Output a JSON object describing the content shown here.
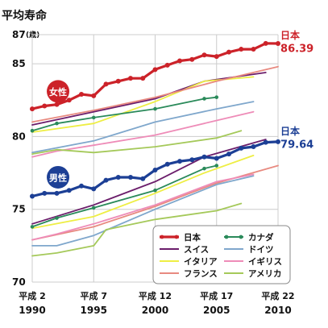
{
  "chart_data": {
    "type": "line",
    "title": "平均寿命",
    "ylabel_unit": "(歳)",
    "ylim": [
      70,
      87
    ],
    "yticks": [
      {
        "label": "87",
        "value": 87
      },
      {
        "label": "85",
        "value": 85
      },
      {
        "label": "80",
        "value": 80
      },
      {
        "label": "75",
        "value": 75
      },
      {
        "label": "70",
        "value": 70
      }
    ],
    "xlim": [
      1990,
      2010
    ],
    "xticks": [
      {
        "era": "平成 2",
        "year": "1990",
        "value": 1990
      },
      {
        "era": "平成 7",
        "year": "1995",
        "value": 1995
      },
      {
        "era": "平成 12",
        "year": "2000",
        "value": 2000
      },
      {
        "era": "平成 17",
        "year": "2005",
        "value": 2005
      },
      {
        "era": "平成 22",
        "year": "2010",
        "value": 2010
      }
    ],
    "sex_badges": [
      {
        "label": "女性",
        "color": "#cc2229",
        "y": 83.1,
        "x": 1992.1
      },
      {
        "label": "男性",
        "color": "#1c3f95",
        "y": 77.2,
        "x": 1992.1
      }
    ],
    "end_labels": [
      {
        "country": "日本",
        "value": "86.39",
        "color": "#cc2229",
        "y_country": 87.0,
        "y_value": 86.1,
        "x": 2010.2
      },
      {
        "country": "日本",
        "value": "79.64",
        "color": "#1c3f95",
        "y_country": 80.4,
        "y_value": 79.5,
        "x": 2010.2
      }
    ],
    "legend": [
      {
        "name": "日本",
        "color": "#cc2229",
        "marker": true
      },
      {
        "name": "スイス",
        "color": "#6b1d6b",
        "marker": false
      },
      {
        "name": "イタリア",
        "color": "#eeee44",
        "marker": false
      },
      {
        "name": "フランス",
        "color": "#e88a80",
        "marker": false
      },
      {
        "name": "カナダ",
        "color": "#2a8a5a",
        "marker": true
      },
      {
        "name": "ドイツ",
        "color": "#7fa7cc",
        "marker": false
      },
      {
        "name": "イギリス",
        "color": "#ee8cb8",
        "marker": false
      },
      {
        "name": "アメリカ",
        "color": "#a5c95a",
        "marker": false
      }
    ],
    "series": [
      {
        "name": "日本",
        "sex": "female",
        "color": "#cc2229",
        "width": 3.2,
        "marker": true,
        "x": [
          1990,
          1991,
          1992,
          1993,
          1994,
          1995,
          1996,
          1997,
          1998,
          1999,
          2000,
          2001,
          2002,
          2003,
          2004,
          2005,
          2006,
          2007,
          2008,
          2009,
          2010
        ],
        "y": [
          81.9,
          82.1,
          82.2,
          82.5,
          82.9,
          82.8,
          83.6,
          83.8,
          84.0,
          84.0,
          84.6,
          84.9,
          85.2,
          85.3,
          85.6,
          85.5,
          85.8,
          86.0,
          86.0,
          86.4,
          86.39
        ]
      },
      {
        "name": "日本",
        "sex": "male",
        "color": "#1c3f95",
        "width": 3.2,
        "marker": true,
        "x": [
          1990,
          1991,
          1992,
          1993,
          1994,
          1995,
          1996,
          1997,
          1998,
          1999,
          2000,
          2001,
          2002,
          2003,
          2004,
          2005,
          2006,
          2007,
          2008,
          2009,
          2010
        ],
        "y": [
          75.9,
          76.1,
          76.1,
          76.3,
          76.6,
          76.4,
          77.0,
          77.2,
          77.2,
          77.1,
          77.7,
          78.1,
          78.3,
          78.4,
          78.6,
          78.5,
          78.8,
          79.2,
          79.3,
          79.6,
          79.64
        ]
      },
      {
        "name": "スイス",
        "sex": "female",
        "color": "#6b1d6b",
        "width": 1.8,
        "marker": false,
        "x": [
          1990,
          1995,
          2000,
          2004,
          2009
        ],
        "y": [
          80.8,
          81.7,
          82.6,
          83.8,
          84.4
        ]
      },
      {
        "name": "スイス",
        "sex": "male",
        "color": "#6b1d6b",
        "width": 1.8,
        "marker": false,
        "x": [
          1990,
          1995,
          2000,
          2004,
          2009
        ],
        "y": [
          74.0,
          75.3,
          76.9,
          78.6,
          79.8
        ]
      },
      {
        "name": "イタリア",
        "sex": "female",
        "color": "#eeee44",
        "width": 1.8,
        "marker": false,
        "x": [
          1990,
          1995,
          2000,
          2004,
          2008
        ],
        "y": [
          80.3,
          80.9,
          82.4,
          83.8,
          84.1
        ]
      },
      {
        "name": "イタリア",
        "sex": "male",
        "color": "#eeee44",
        "width": 1.8,
        "marker": false,
        "x": [
          1990,
          1995,
          2000,
          2004,
          2008
        ],
        "y": [
          73.7,
          74.5,
          76.1,
          77.5,
          78.7
        ]
      },
      {
        "name": "フランス",
        "sex": "female",
        "color": "#e88a80",
        "width": 1.8,
        "marker": false,
        "x": [
          1990,
          1995,
          2000,
          2005,
          2010
        ],
        "y": [
          81.0,
          81.8,
          82.7,
          83.8,
          84.8
        ]
      },
      {
        "name": "フランス",
        "sex": "male",
        "color": "#e88a80",
        "width": 1.8,
        "marker": false,
        "x": [
          1990,
          1995,
          2000,
          2005,
          2010
        ],
        "y": [
          72.9,
          73.8,
          75.2,
          76.8,
          78.0
        ]
      },
      {
        "name": "カナダ",
        "sex": "female",
        "color": "#2a8a5a",
        "width": 1.8,
        "marker": true,
        "x": [
          1990,
          1992,
          1995,
          2000,
          2004,
          2005
        ],
        "y": [
          80.4,
          80.9,
          81.3,
          81.9,
          82.6,
          82.7
        ]
      },
      {
        "name": "カナダ",
        "sex": "male",
        "color": "#2a8a5a",
        "width": 1.8,
        "marker": true,
        "x": [
          1990,
          1992,
          1995,
          2000,
          2004,
          2005
        ],
        "y": [
          73.8,
          74.4,
          75.1,
          76.3,
          77.8,
          78.0
        ]
      },
      {
        "name": "ドイツ",
        "sex": "female",
        "color": "#7fa7cc",
        "width": 1.8,
        "marker": false,
        "x": [
          1990,
          1995,
          2000,
          2005,
          2008
        ],
        "y": [
          78.9,
          79.7,
          81.0,
          81.9,
          82.4
        ]
      },
      {
        "name": "ドイツ",
        "sex": "male",
        "color": "#7fa7cc",
        "width": 1.8,
        "marker": false,
        "x": [
          1990,
          1992,
          1995,
          2000,
          2005,
          2008
        ],
        "y": [
          72.5,
          72.5,
          73.2,
          75.0,
          76.7,
          77.3
        ]
      },
      {
        "name": "イギリス",
        "sex": "female",
        "color": "#ee8cb8",
        "width": 1.8,
        "marker": false,
        "x": [
          1990,
          1992,
          1995,
          2000,
          2005,
          2008
        ],
        "y": [
          78.6,
          79.0,
          79.4,
          80.1,
          81.1,
          81.7
        ]
      },
      {
        "name": "イギリス",
        "sex": "male",
        "color": "#ee8cb8",
        "width": 1.8,
        "marker": false,
        "x": [
          1990,
          1992,
          1995,
          2000,
          2005,
          2008
        ],
        "y": [
          72.9,
          73.3,
          74.0,
          75.3,
          76.9,
          77.4
        ]
      },
      {
        "name": "アメリカ",
        "sex": "female",
        "color": "#a5c95a",
        "width": 1.8,
        "marker": false,
        "x": [
          1990,
          1992,
          1995,
          2000,
          2005,
          2007
        ],
        "y": [
          78.8,
          79.1,
          78.9,
          79.3,
          79.9,
          80.4
        ]
      },
      {
        "name": "アメリカ",
        "sex": "male",
        "color": "#a5c95a",
        "width": 1.8,
        "marker": false,
        "x": [
          1990,
          1992,
          1995,
          1996,
          2000,
          2005,
          2007
        ],
        "y": [
          71.8,
          72.0,
          72.5,
          73.6,
          74.3,
          74.9,
          75.4
        ]
      }
    ]
  }
}
